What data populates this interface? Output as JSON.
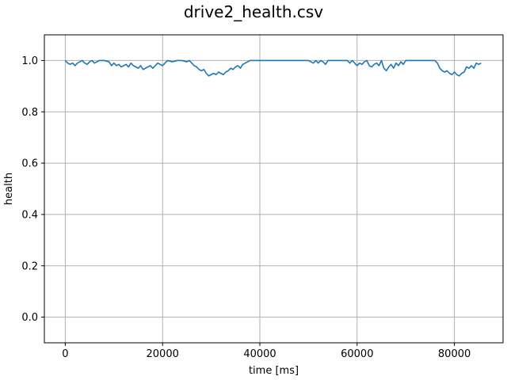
{
  "chart_data": {
    "type": "line",
    "title": "drive2_health.csv",
    "xlabel": "time [ms]",
    "ylabel": "health",
    "xlim": [
      -4300,
      90000
    ],
    "ylim": [
      -0.1,
      1.1
    ],
    "xticks": [
      0,
      20000,
      40000,
      60000,
      80000
    ],
    "xtick_labels": [
      "0",
      "20000",
      "40000",
      "60000",
      "80000"
    ],
    "yticks": [
      0.0,
      0.2,
      0.4,
      0.6,
      0.8,
      1.0
    ],
    "ytick_labels": [
      "0.0",
      "0.2",
      "0.4",
      "0.6",
      "0.8",
      "1.0"
    ],
    "grid": true,
    "series": [
      {
        "color": "#1f77b4",
        "x": [
          0,
          500,
          1000,
          1500,
          2000,
          2500,
          3000,
          3500,
          4000,
          4500,
          5000,
          5500,
          6000,
          7000,
          8000,
          9000,
          9500,
          10000,
          10500,
          11000,
          11500,
          12000,
          12500,
          13000,
          13500,
          14000,
          14500,
          15000,
          15500,
          16000,
          16500,
          17000,
          17500,
          18000,
          18500,
          19000,
          19500,
          20000,
          20500,
          21000,
          22000,
          23000,
          24000,
          25000,
          25500,
          26000,
          26500,
          27000,
          27500,
          28000,
          28500,
          29000,
          29500,
          30000,
          30500,
          31000,
          31500,
          32000,
          32500,
          33000,
          33500,
          34000,
          34500,
          35000,
          35500,
          36000,
          36500,
          37000,
          38000,
          40000,
          42000,
          44000,
          46000,
          48000,
          50000,
          50500,
          51000,
          51500,
          52000,
          52500,
          53000,
          53500,
          54000,
          55000,
          56000,
          57000,
          58000,
          58500,
          59000,
          59500,
          60000,
          60500,
          61000,
          61500,
          62000,
          62500,
          63000,
          63500,
          64000,
          64500,
          65000,
          65500,
          66000,
          66500,
          67000,
          67500,
          68000,
          68500,
          69000,
          69500,
          70000,
          72000,
          74000,
          76000,
          76500,
          77000,
          77500,
          78000,
          78500,
          79000,
          79500,
          80000,
          80500,
          81000,
          81500,
          82000,
          82500,
          83000,
          83500,
          84000,
          84500,
          85000,
          85500
        ],
        "values": [
          1.0,
          0.99,
          0.985,
          0.99,
          0.98,
          0.99,
          0.995,
          1.0,
          0.99,
          0.985,
          0.995,
          1.0,
          0.99,
          1.0,
          1.0,
          0.995,
          0.98,
          0.99,
          0.98,
          0.985,
          0.975,
          0.98,
          0.985,
          0.975,
          0.99,
          0.98,
          0.975,
          0.97,
          0.98,
          0.965,
          0.97,
          0.975,
          0.98,
          0.97,
          0.98,
          0.99,
          0.985,
          0.98,
          0.99,
          1.0,
          0.995,
          1.0,
          1.0,
          0.995,
          1.0,
          0.99,
          0.98,
          0.975,
          0.965,
          0.96,
          0.965,
          0.95,
          0.94,
          0.945,
          0.95,
          0.945,
          0.955,
          0.95,
          0.945,
          0.955,
          0.96,
          0.97,
          0.965,
          0.975,
          0.98,
          0.97,
          0.985,
          0.99,
          1.0,
          1.0,
          1.0,
          1.0,
          1.0,
          1.0,
          1.0,
          0.995,
          0.99,
          1.0,
          0.99,
          1.0,
          0.995,
          0.985,
          1.0,
          1.0,
          1.0,
          1.0,
          1.0,
          0.99,
          1.0,
          0.99,
          0.98,
          0.99,
          0.985,
          0.995,
          1.0,
          0.98,
          0.975,
          0.985,
          0.99,
          0.98,
          1.0,
          0.97,
          0.96,
          0.975,
          0.985,
          0.97,
          0.99,
          0.98,
          0.995,
          0.985,
          1.0,
          1.0,
          1.0,
          1.0,
          0.99,
          0.97,
          0.96,
          0.955,
          0.96,
          0.95,
          0.945,
          0.955,
          0.945,
          0.94,
          0.95,
          0.955,
          0.975,
          0.97,
          0.98,
          0.97,
          0.99,
          0.985,
          0.99
        ]
      }
    ]
  }
}
